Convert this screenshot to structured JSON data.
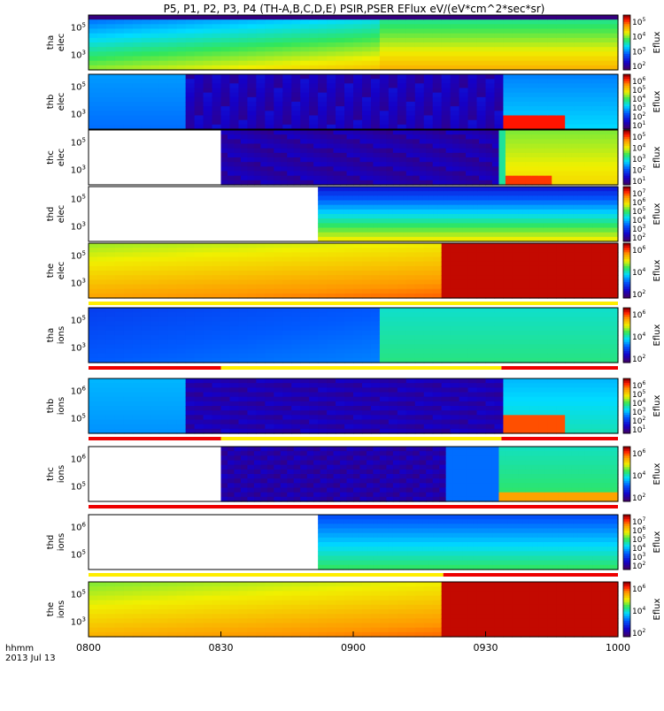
{
  "title": "P5, P1, P2, P3, P4 (TH-A,B,C,D,E) PSIR,PSER EFlux eV/(eV*cm^2*sec*sr)",
  "colorbar_label": "Eflux",
  "x_axis": {
    "ticks": [
      "0800",
      "0830",
      "0900",
      "0930",
      "1000"
    ],
    "corner_label_1": "hhmm",
    "corner_label_2": "2013 Jul 13"
  },
  "chart_data": {
    "type": "heatmap",
    "title": "P5, P1, P2, P3, P4 (TH-A,B,C,D,E) PSIR,PSER EFlux eV/(eV*cm^2*sec*sr)",
    "x_range": [
      "08:00",
      "10:00"
    ],
    "panels": [
      {
        "name": "tha elec",
        "ylabel": [
          "tha",
          "elec"
        ],
        "yticks": [
          "10^5",
          "10^3"
        ],
        "cbar": [
          "10^5",
          "10^4",
          "10^3",
          "10^2"
        ],
        "data_start": "08:00",
        "quicklook": null
      },
      {
        "name": "thb elec",
        "ylabel": [
          "thb",
          "elec"
        ],
        "yticks": [
          "10^5",
          "10^3"
        ],
        "cbar": [
          "10^6",
          "10^5",
          "10^4",
          "10^3",
          "10^2",
          "10^1"
        ],
        "data_start": "08:00",
        "quicklook": null
      },
      {
        "name": "thc elec",
        "ylabel": [
          "thc",
          "elec"
        ],
        "yticks": [
          "10^5",
          "10^3"
        ],
        "cbar": [
          "10^5",
          "10^4",
          "10^3",
          "10^2",
          "10^1"
        ],
        "data_start": "08:30",
        "quicklook": null
      },
      {
        "name": "thd elec",
        "ylabel": [
          "thd",
          "elec"
        ],
        "yticks": [
          "10^5",
          "10^3"
        ],
        "cbar": [
          "10^7",
          "10^6",
          "10^5",
          "10^4",
          "10^3",
          "10^2"
        ],
        "data_start": "08:52",
        "quicklook": null
      },
      {
        "name": "the elec",
        "ylabel": [
          "the",
          "elec"
        ],
        "yticks": [
          "10^5",
          "10^3"
        ],
        "cbar": [
          "10^6",
          "10^4",
          "10^2"
        ],
        "data_start": "08:00",
        "quicklook": "yellow"
      },
      {
        "name": "tha ions",
        "ylabel": [
          "tha",
          "ions"
        ],
        "yticks": [
          "10^5",
          "10^3"
        ],
        "cbar": [
          "10^6",
          "10^4",
          "10^2"
        ],
        "data_start": "08:00",
        "quicklook": "red-yellow-red"
      },
      {
        "name": "thb ions",
        "ylabel": [
          "thb",
          "ions"
        ],
        "yticks": [
          "10^6",
          "10^5"
        ],
        "cbar": [
          "10^6",
          "10^5",
          "10^4",
          "10^3",
          "10^2",
          "10^1"
        ],
        "data_start": "08:00",
        "quicklook": "red-yellow-red"
      },
      {
        "name": "thc ions",
        "ylabel": [
          "thc",
          "ions"
        ],
        "yticks": [
          "10^6",
          "10^5"
        ],
        "cbar": [
          "10^6",
          "10^4",
          "10^2"
        ],
        "data_start": "08:30",
        "quicklook": "red"
      },
      {
        "name": "thd ions",
        "ylabel": [
          "thd",
          "ions"
        ],
        "yticks": [
          "10^6",
          "10^5"
        ],
        "cbar": [
          "10^7",
          "10^6",
          "10^5",
          "10^4",
          "10^3",
          "10^2"
        ],
        "data_start": "08:52",
        "quicklook": "yellow-red"
      },
      {
        "name": "the ions",
        "ylabel": [
          "the",
          "ions"
        ],
        "yticks": [
          "10^5",
          "10^3"
        ],
        "cbar": [
          "10^6",
          "10^4",
          "10^2"
        ],
        "data_start": "08:00",
        "quicklook": null
      }
    ]
  }
}
